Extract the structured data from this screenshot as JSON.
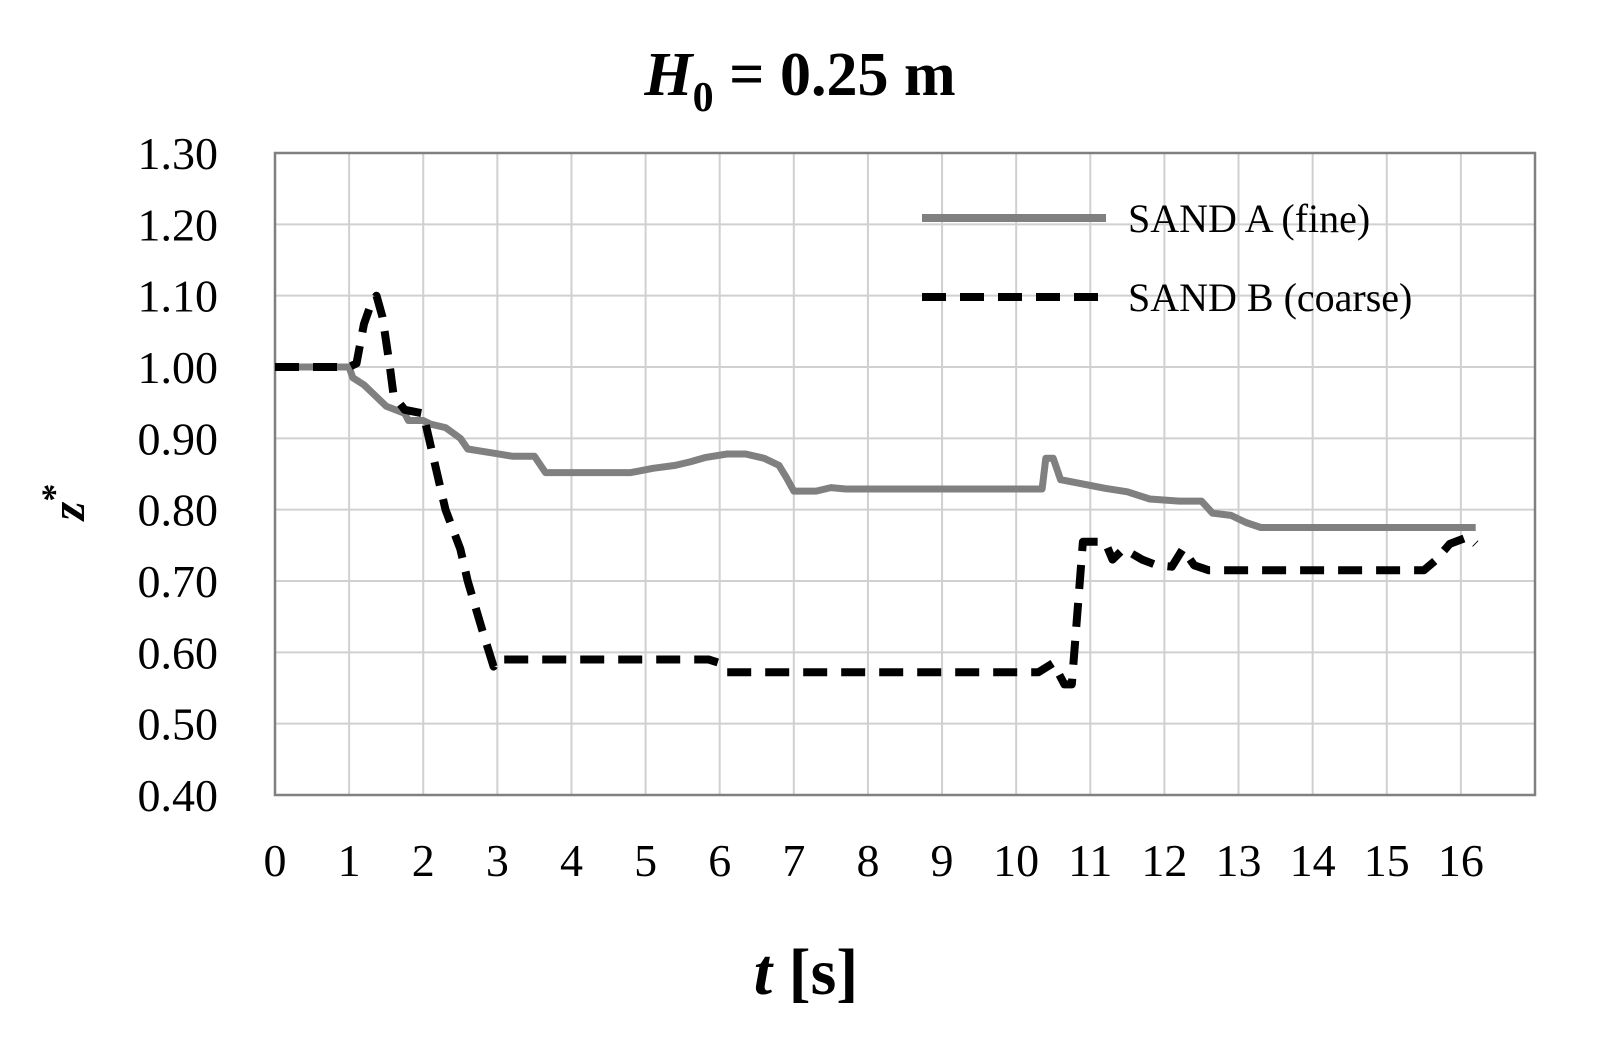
{
  "chart_data": {
    "type": "line",
    "title": {
      "var": "H",
      "sub": "0",
      "rest": " = 0.25 m"
    },
    "xlabel": {
      "var": "t",
      "rest": " [s]"
    },
    "ylabel": {
      "var": "z",
      "sup": "*"
    },
    "xlim": [
      0,
      17
    ],
    "ylim": [
      0.4,
      1.3
    ],
    "x_ticks": [
      0,
      1,
      2,
      3,
      4,
      5,
      6,
      7,
      8,
      9,
      10,
      11,
      12,
      13,
      14,
      15,
      16
    ],
    "x_tick_labels": [
      "0",
      "1",
      "2",
      "3",
      "4",
      "5",
      "6",
      "7",
      "8",
      "9",
      "10",
      "11",
      "12",
      "13",
      "14",
      "15",
      "16"
    ],
    "y_ticks": [
      0.4,
      0.5,
      0.6,
      0.7,
      0.8,
      0.9,
      1.0,
      1.1,
      1.2,
      1.3
    ],
    "y_tick_labels": [
      "0.40",
      "0.50",
      "0.60",
      "0.70",
      "0.80",
      "0.90",
      "1.00",
      "1.10",
      "1.20",
      "1.30"
    ],
    "grid": true,
    "legend_position": "top-right",
    "series": [
      {
        "name": "SAND A (fine)",
        "color": "#808080",
        "style": "solid",
        "points": [
          [
            0,
            1.0
          ],
          [
            1.0,
            1.0
          ],
          [
            1.05,
            0.985
          ],
          [
            1.2,
            0.975
          ],
          [
            1.35,
            0.96
          ],
          [
            1.5,
            0.945
          ],
          [
            1.75,
            0.935
          ],
          [
            1.8,
            0.925
          ],
          [
            2.0,
            0.925
          ],
          [
            2.1,
            0.92
          ],
          [
            2.3,
            0.915
          ],
          [
            2.5,
            0.9
          ],
          [
            2.6,
            0.885
          ],
          [
            2.9,
            0.88
          ],
          [
            3.2,
            0.875
          ],
          [
            3.5,
            0.875
          ],
          [
            3.65,
            0.852
          ],
          [
            4.0,
            0.852
          ],
          [
            4.8,
            0.852
          ],
          [
            5.1,
            0.858
          ],
          [
            5.4,
            0.862
          ],
          [
            5.6,
            0.867
          ],
          [
            5.8,
            0.873
          ],
          [
            6.1,
            0.878
          ],
          [
            6.35,
            0.878
          ],
          [
            6.6,
            0.872
          ],
          [
            6.8,
            0.862
          ],
          [
            6.9,
            0.845
          ],
          [
            7.0,
            0.826
          ],
          [
            7.3,
            0.826
          ],
          [
            7.5,
            0.831
          ],
          [
            7.7,
            0.829
          ],
          [
            8.0,
            0.829
          ],
          [
            9.0,
            0.829
          ],
          [
            10.0,
            0.829
          ],
          [
            10.35,
            0.829
          ],
          [
            10.4,
            0.872
          ],
          [
            10.5,
            0.872
          ],
          [
            10.6,
            0.842
          ],
          [
            10.8,
            0.838
          ],
          [
            11.2,
            0.83
          ],
          [
            11.5,
            0.825
          ],
          [
            11.8,
            0.815
          ],
          [
            12.2,
            0.812
          ],
          [
            12.5,
            0.812
          ],
          [
            12.65,
            0.795
          ],
          [
            12.9,
            0.792
          ],
          [
            13.1,
            0.782
          ],
          [
            13.3,
            0.775
          ],
          [
            14.0,
            0.775
          ],
          [
            15.0,
            0.775
          ],
          [
            16.2,
            0.775
          ]
        ]
      },
      {
        "name": "SAND B (coarse)",
        "color": "#000000",
        "style": "dashed",
        "points": [
          [
            0,
            1.0
          ],
          [
            1.0,
            1.0
          ],
          [
            1.1,
            1.005
          ],
          [
            1.2,
            1.06
          ],
          [
            1.3,
            1.09
          ],
          [
            1.37,
            1.1
          ],
          [
            1.45,
            1.07
          ],
          [
            1.55,
            1.0
          ],
          [
            1.6,
            0.96
          ],
          [
            1.75,
            0.94
          ],
          [
            2.0,
            0.935
          ],
          [
            2.1,
            0.89
          ],
          [
            2.3,
            0.8
          ],
          [
            2.5,
            0.745
          ],
          [
            2.6,
            0.7
          ],
          [
            2.8,
            0.63
          ],
          [
            2.95,
            0.58
          ],
          [
            3.0,
            0.59
          ],
          [
            4.0,
            0.59
          ],
          [
            5.0,
            0.59
          ],
          [
            5.85,
            0.59
          ],
          [
            6.0,
            0.585
          ],
          [
            6.1,
            0.572
          ],
          [
            7.0,
            0.572
          ],
          [
            8.0,
            0.572
          ],
          [
            9.0,
            0.572
          ],
          [
            10.3,
            0.572
          ],
          [
            10.5,
            0.585
          ],
          [
            10.65,
            0.555
          ],
          [
            10.75,
            0.555
          ],
          [
            10.9,
            0.755
          ],
          [
            11.2,
            0.755
          ],
          [
            11.3,
            0.73
          ],
          [
            11.45,
            0.745
          ],
          [
            11.7,
            0.73
          ],
          [
            11.9,
            0.722
          ],
          [
            12.1,
            0.72
          ],
          [
            12.25,
            0.745
          ],
          [
            12.4,
            0.722
          ],
          [
            12.6,
            0.715
          ],
          [
            13.0,
            0.715
          ],
          [
            14.0,
            0.715
          ],
          [
            15.5,
            0.715
          ],
          [
            15.65,
            0.728
          ],
          [
            15.85,
            0.752
          ],
          [
            16.1,
            0.762
          ],
          [
            16.2,
            0.752
          ]
        ]
      }
    ]
  }
}
